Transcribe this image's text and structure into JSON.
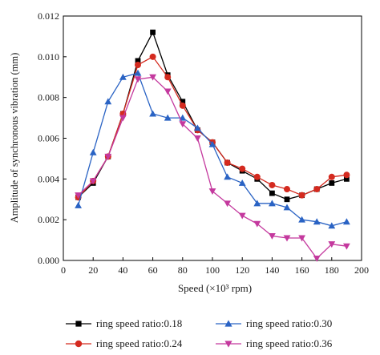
{
  "chart_data": {
    "type": "line",
    "xlabel": "Speed (×10³ rpm)",
    "ylabel": "Amplitude of synchronous vibration (mm)",
    "xlim": [
      0,
      200
    ],
    "ylim": [
      0,
      0.012
    ],
    "x_ticks": [
      "0",
      "20",
      "40",
      "60",
      "80",
      "100",
      "120",
      "140",
      "160",
      "180",
      "200"
    ],
    "y_ticks": [
      "0.000",
      "0.002",
      "0.004",
      "0.006",
      "0.008",
      "0.010",
      "0.012"
    ],
    "grid": false,
    "legend_position": "bottom",
    "x": [
      10,
      20,
      30,
      40,
      50,
      60,
      70,
      80,
      90,
      100,
      110,
      120,
      130,
      140,
      150,
      160,
      170,
      180,
      190
    ],
    "series": [
      {
        "name": "ring speed ratio:0.18",
        "color": "#000000",
        "marker": "square",
        "values": [
          0.0031,
          0.0038,
          0.0051,
          0.0072,
          0.0098,
          0.0112,
          0.0091,
          0.0078,
          0.0064,
          0.0058,
          0.0048,
          0.0044,
          0.004,
          0.0033,
          0.003,
          0.0032,
          0.0035,
          0.0038,
          0.004
        ]
      },
      {
        "name": "ring speed ratio:0.24",
        "color": "#d42a1f",
        "marker": "circle",
        "values": [
          0.0031,
          0.0039,
          0.0051,
          0.0072,
          0.0096,
          0.01,
          0.009,
          0.0076,
          0.0064,
          0.0058,
          0.0048,
          0.0045,
          0.0041,
          0.0037,
          0.0035,
          0.0032,
          0.0035,
          0.0041,
          0.0042
        ]
      },
      {
        "name": "ring speed ratio:0.30",
        "color": "#2a63c4",
        "marker": "triangle-up",
        "values": [
          0.0027,
          0.0053,
          0.0078,
          0.009,
          0.0092,
          0.0072,
          0.007,
          0.007,
          0.0065,
          0.0057,
          0.0041,
          0.0038,
          0.0028,
          0.0028,
          0.0026,
          0.002,
          0.0019,
          0.0017,
          0.0019
        ]
      },
      {
        "name": "ring speed ratio:0.36",
        "color": "#c4399e",
        "marker": "triangle-down",
        "values": [
          0.0032,
          0.0039,
          0.0051,
          0.007,
          0.0089,
          0.009,
          0.0083,
          0.0067,
          0.006,
          0.0034,
          0.0028,
          0.0022,
          0.0018,
          0.0012,
          0.0011,
          0.0011,
          0.0001,
          0.0008,
          0.0007
        ]
      }
    ]
  }
}
